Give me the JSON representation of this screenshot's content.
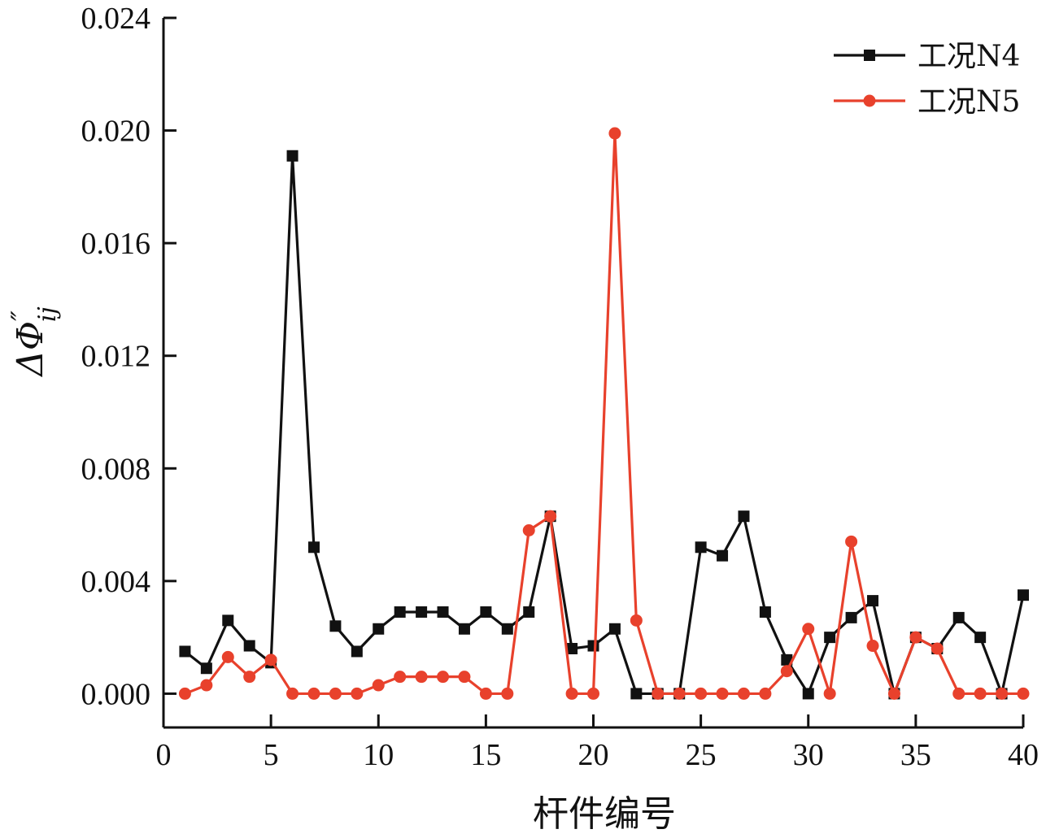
{
  "chart_data": {
    "type": "line",
    "xlabel": "杆件编号",
    "ylabel": "ΔΦ″ij",
    "ylabel_parts": {
      "symbol": "ΔΦ",
      "superscript": "″",
      "subscript": "ij"
    },
    "xlim": [
      0,
      40
    ],
    "ylim": [
      -0.0012,
      0.024
    ],
    "x_ticks": [
      0,
      5,
      10,
      15,
      20,
      25,
      30,
      35,
      40
    ],
    "y_ticks": [
      0.0,
      0.004,
      0.008,
      0.012,
      0.016,
      0.02,
      0.024
    ],
    "y_tick_labels": [
      "0.000",
      "0.004",
      "0.008",
      "0.012",
      "0.016",
      "0.020",
      "0.024"
    ],
    "legend_position": "top-right",
    "x": [
      1,
      2,
      3,
      4,
      5,
      6,
      7,
      8,
      9,
      10,
      11,
      12,
      13,
      14,
      15,
      16,
      17,
      18,
      19,
      20,
      21,
      22,
      23,
      24,
      25,
      26,
      27,
      28,
      29,
      30,
      31,
      32,
      33,
      34,
      35,
      36,
      37,
      38,
      39,
      40
    ],
    "series": [
      {
        "name": "工况N4",
        "color": "#111111",
        "marker": "square",
        "values": [
          0.0015,
          0.0009,
          0.0026,
          0.0017,
          0.0011,
          0.0191,
          0.0052,
          0.0024,
          0.0015,
          0.0023,
          0.0029,
          0.0029,
          0.0029,
          0.0023,
          0.0029,
          0.0023,
          0.0029,
          0.0063,
          0.0016,
          0.0017,
          0.0023,
          0.0,
          0.0,
          0.0,
          0.0052,
          0.0049,
          0.0063,
          0.0029,
          0.0012,
          0.0,
          0.002,
          0.0027,
          0.0033,
          0.0,
          0.002,
          0.0016,
          0.0027,
          0.002,
          0.0,
          0.0035
        ]
      },
      {
        "name": "工况N5",
        "color": "#e8412c",
        "marker": "circle",
        "values": [
          0.0,
          0.0003,
          0.0013,
          0.0006,
          0.0012,
          0.0,
          0.0,
          0.0,
          0.0,
          0.0003,
          0.0006,
          0.0006,
          0.0006,
          0.0006,
          0.0,
          0.0,
          0.0058,
          0.0063,
          0.0,
          0.0,
          0.0199,
          0.0026,
          0.0,
          0.0,
          0.0,
          0.0,
          0.0,
          0.0,
          0.0008,
          0.0023,
          0.0,
          0.0054,
          0.0017,
          0.0,
          0.002,
          0.0016,
          0.0,
          0.0,
          0.0,
          0.0
        ]
      }
    ]
  }
}
